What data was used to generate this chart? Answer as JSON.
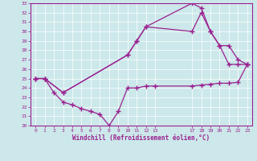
{
  "xlabel": "Windchill (Refroidissement éolien,°C)",
  "bg_color": "#cce8ea",
  "line_color": "#9b2090",
  "xlim": [
    -0.5,
    23.5
  ],
  "ylim": [
    20,
    33
  ],
  "xticks": [
    0,
    1,
    2,
    3,
    4,
    5,
    6,
    7,
    8,
    9,
    10,
    11,
    12,
    13,
    17,
    18,
    19,
    20,
    21,
    22,
    23
  ],
  "yticks": [
    20,
    21,
    22,
    23,
    24,
    25,
    26,
    27,
    28,
    29,
    30,
    31,
    32,
    33
  ],
  "lines": [
    {
      "x": [
        0,
        1,
        2,
        3,
        4,
        5,
        6,
        7,
        8,
        9,
        10,
        11,
        12,
        13,
        17,
        18,
        19,
        20,
        21,
        22,
        23
      ],
      "y": [
        25.0,
        25.0,
        23.5,
        22.5,
        22.2,
        21.8,
        21.5,
        21.2,
        20.0,
        21.5,
        24.0,
        24.0,
        24.2,
        24.2,
        24.2,
        24.3,
        24.4,
        24.5,
        24.5,
        24.6,
        26.5
      ]
    },
    {
      "x": [
        0,
        1,
        3,
        10,
        11,
        12,
        17,
        18,
        19,
        20,
        21,
        22,
        23
      ],
      "y": [
        25.0,
        25.0,
        23.5,
        27.5,
        29.0,
        30.5,
        33.0,
        32.5,
        30.0,
        28.5,
        28.5,
        27.0,
        26.5
      ]
    },
    {
      "x": [
        0,
        1,
        3,
        10,
        11,
        12,
        17,
        18,
        19,
        20,
        21,
        22,
        23
      ],
      "y": [
        25.0,
        25.0,
        23.5,
        27.5,
        29.0,
        30.5,
        30.0,
        32.0,
        30.0,
        28.5,
        26.5,
        26.5,
        26.5
      ]
    }
  ]
}
